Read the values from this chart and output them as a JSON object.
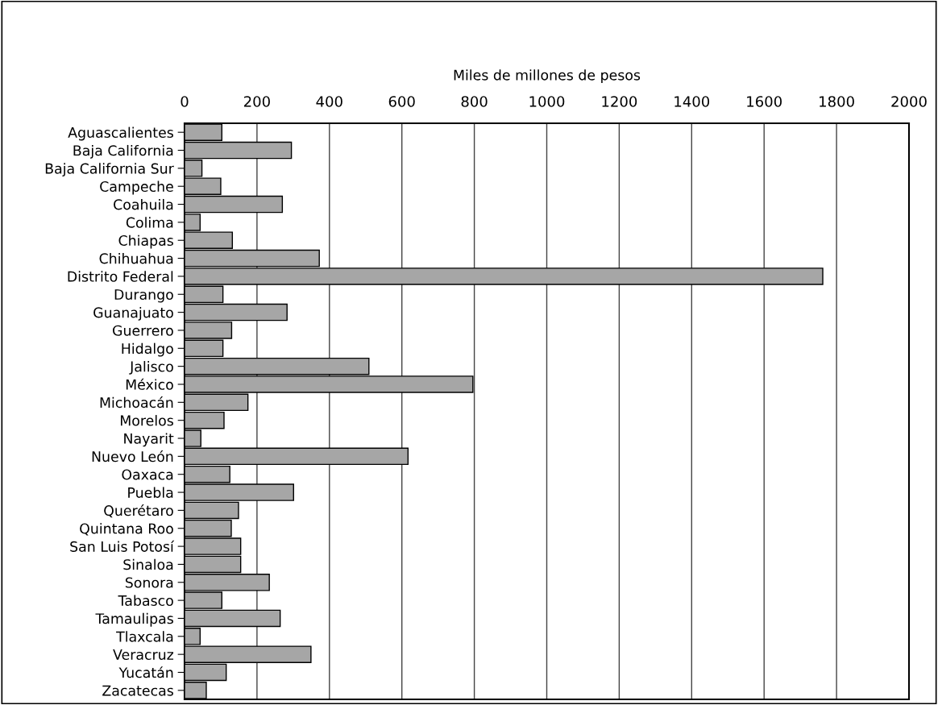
{
  "chart_data": {
    "type": "bar",
    "orientation": "horizontal",
    "xlabel": "Miles de millones de pesos",
    "categories": [
      "Aguascalientes",
      "Baja California",
      "Baja California Sur",
      "Campeche",
      "Coahuila",
      "Colima",
      "Chiapas",
      "Chihuahua",
      "Distrito Federal",
      "Durango",
      "Guanajuato",
      "Guerrero",
      "Hidalgo",
      "Jalisco",
      "México",
      "Michoacán",
      "Morelos",
      "Nayarit",
      "Nuevo León",
      "Oaxaca",
      "Puebla",
      "Querétaro",
      "Quintana Roo",
      "San Luis Potosí",
      "Sinaloa",
      "Sonora",
      "Tabasco",
      "Tamaulipas",
      "Tlaxcala",
      "Veracruz",
      "Yucatán",
      "Zacatecas"
    ],
    "values": [
      103,
      295,
      48,
      100,
      270,
      43,
      132,
      372,
      1762,
      106,
      283,
      130,
      106,
      509,
      796,
      175,
      109,
      45,
      617,
      125,
      301,
      149,
      129,
      155,
      155,
      234,
      103,
      264,
      43,
      349,
      115,
      60
    ],
    "color": "#a6a6a6",
    "xlim": [
      0,
      2000
    ],
    "xticks": [
      0,
      200,
      400,
      600,
      800,
      1000,
      1200,
      1400,
      1600,
      1800,
      2000
    ],
    "grid": "x",
    "legend": false
  }
}
